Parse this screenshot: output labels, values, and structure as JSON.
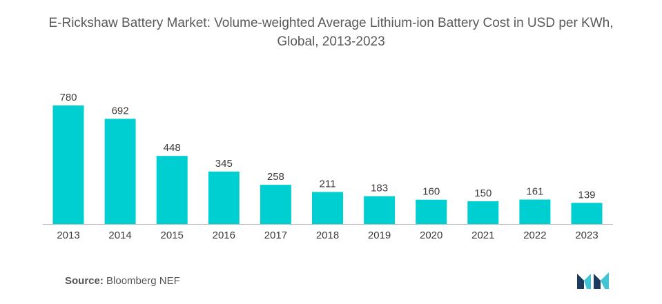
{
  "chart_data": {
    "type": "bar",
    "title": "E-Rickshaw Battery Market: Volume-weighted Average Lithium-ion Battery Cost in USD per KWh, Global, 2013-2023",
    "categories": [
      "2013",
      "2014",
      "2015",
      "2016",
      "2017",
      "2018",
      "2019",
      "2020",
      "2021",
      "2022",
      "2023"
    ],
    "values": [
      780,
      692,
      448,
      345,
      258,
      211,
      183,
      160,
      150,
      161,
      139
    ],
    "data_labels": [
      "780",
      "692",
      "448",
      "345",
      "258",
      "211",
      "183",
      "160",
      "150",
      "161",
      "139"
    ],
    "xlabel": "",
    "ylabel": "",
    "ylim": [
      0,
      780
    ],
    "grid": false,
    "legend": "none",
    "bar_color": "#00CFD1",
    "axis_color": "#bdbdbd"
  },
  "source": {
    "label": "Source:",
    "text": "Bloomberg NEF"
  },
  "logo": {
    "icon": "mordor-intelligence-logo-icon",
    "color_dark": "#1B3A5C",
    "color_light": "#41C4D3"
  }
}
